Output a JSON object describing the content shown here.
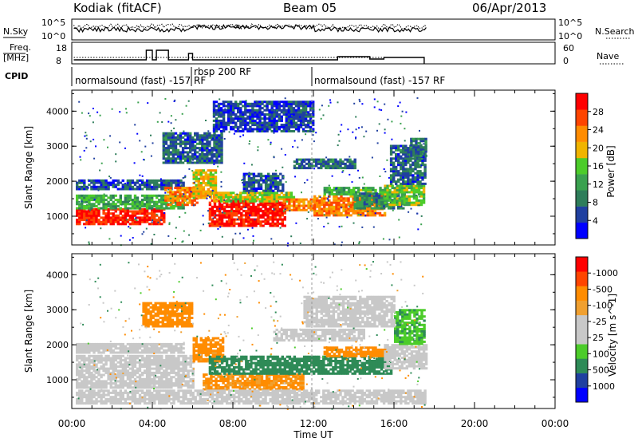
{
  "header": {
    "station": "Kodiak (fitACF)",
    "beam": "Beam 05",
    "date": "06/Apr/2013"
  },
  "noise_panel": {
    "left_label": "N.Sky",
    "right_label": "N.Search",
    "left_ticks": [
      "10^5",
      "10^0"
    ],
    "right_ticks": [
      "10^5",
      "10^0"
    ]
  },
  "freq_panel": {
    "left_label_1": "Freq.",
    "left_label_2": "[MHz]",
    "right_label": "Nave",
    "left_ticks": [
      "18",
      "8"
    ],
    "right_ticks": [
      "60",
      "0"
    ]
  },
  "cpid": {
    "label": "CPID",
    "segments": [
      {
        "text": "normalsound (fast) -157 RF",
        "start_hour": 0,
        "end_hour": 6
      },
      {
        "text": "rbsp 200 RF",
        "start_hour": 6,
        "end_hour": 12
      },
      {
        "text": "normalsound (fast) -157 RF",
        "start_hour": 12,
        "end_hour": 24
      }
    ]
  },
  "time_axis": {
    "label": "Time UT",
    "ticks": [
      "00:00",
      "04:00",
      "08:00",
      "12:00",
      "16:00",
      "20:00",
      "00:00"
    ],
    "tick_hours": [
      0,
      4,
      8,
      12,
      16,
      20,
      24
    ]
  },
  "colors": {
    "power_scale": [
      "#0000ff",
      "#2040a0",
      "#2e7d5a",
      "#3aa14f",
      "#4ccc2a",
      "#f0b400",
      "#ff8c00",
      "#ff4500",
      "#ff0000"
    ],
    "velocity_scale": [
      "#ff0000",
      "#ff4500",
      "#ff8c00",
      "#f0a030",
      "#c8c8c8",
      "#c8c8c8",
      "#4ccc2a",
      "#2e8b57",
      "#2040a0",
      "#0000ff"
    ],
    "ground_scatter": "#c8c8c8"
  },
  "chart_data": [
    {
      "type": "heatmap",
      "title": "Power",
      "ylabel": "Slant Range [km]",
      "xlabel": "Time UT",
      "xlim": [
        0,
        24
      ],
      "ylim": [
        180,
        4600
      ],
      "yticks": [
        1000,
        2000,
        3000,
        4000
      ],
      "colorbar": {
        "label": "Power [dB]",
        "ticks": [
          "4",
          "8",
          "12",
          "16",
          "20",
          "24",
          "28"
        ],
        "tick_values": [
          4,
          8,
          12,
          16,
          20,
          24,
          28
        ],
        "range": [
          0,
          32
        ]
      },
      "regions": [
        {
          "t0": 0.2,
          "t1": 4.6,
          "r0": 750,
          "r1": 1200,
          "value": 29
        },
        {
          "t0": 0.2,
          "t1": 5.6,
          "r0": 1200,
          "r1": 1600,
          "value": 13
        },
        {
          "t0": 0.2,
          "t1": 5.6,
          "r0": 1750,
          "r1": 2050,
          "value": 6
        },
        {
          "t0": 4.6,
          "t1": 6.2,
          "r0": 1300,
          "r1": 1800,
          "value": 24
        },
        {
          "t0": 6.0,
          "t1": 7.2,
          "r0": 1500,
          "r1": 2300,
          "value": 20
        },
        {
          "t0": 6.8,
          "t1": 10.6,
          "r0": 700,
          "r1": 1450,
          "value": 30
        },
        {
          "t0": 7.0,
          "t1": 11.0,
          "r0": 1400,
          "r1": 1650,
          "value": 18
        },
        {
          "t0": 10.5,
          "t1": 12.0,
          "r0": 1150,
          "r1": 1500,
          "value": 24
        },
        {
          "t0": 12.0,
          "t1": 15.5,
          "r0": 1000,
          "r1": 1600,
          "value": 24
        },
        {
          "t0": 12.5,
          "t1": 15.5,
          "r0": 1600,
          "r1": 1800,
          "value": 14
        },
        {
          "t0": 14.0,
          "t1": 16.4,
          "r0": 1200,
          "r1": 1650,
          "value": 10
        },
        {
          "t0": 15.5,
          "t1": 17.5,
          "r0": 1300,
          "r1": 1850,
          "value": 16
        },
        {
          "t0": 15.8,
          "t1": 17.6,
          "r0": 1900,
          "r1": 3000,
          "value": 7
        },
        {
          "t0": 16.8,
          "t1": 17.6,
          "r0": 2700,
          "r1": 3200,
          "value": 8
        },
        {
          "t0": 8.5,
          "t1": 10.5,
          "r0": 1700,
          "r1": 2200,
          "value": 6
        },
        {
          "t0": 11.0,
          "t1": 14.0,
          "r0": 2350,
          "r1": 2650,
          "value": 8
        },
        {
          "t0": 4.5,
          "t1": 7.5,
          "r0": 2500,
          "r1": 3400,
          "value": 7
        },
        {
          "t0": 7.0,
          "t1": 12.0,
          "r0": 3400,
          "r1": 4300,
          "value": 5
        }
      ]
    },
    {
      "type": "heatmap",
      "title": "Velocity",
      "ylabel": "Slant Range [km]",
      "xlabel": "Time UT",
      "xlim": [
        0,
        24
      ],
      "ylim": [
        180,
        4600
      ],
      "yticks": [
        1000,
        2000,
        3000,
        4000
      ],
      "colorbar": {
        "label": "Velocity [m s^-1]",
        "ticks": [
          "-1000",
          "-500",
          "-100",
          "-25",
          "25",
          "100",
          "500",
          "1000"
        ],
        "tick_values": [
          -1000,
          -500,
          -100,
          -25,
          25,
          100,
          500,
          1000
        ]
      },
      "regions": [
        {
          "t0": 0.2,
          "t1": 6.0,
          "r0": 750,
          "r1": 1700,
          "value": 0,
          "ground": true
        },
        {
          "t0": 0.2,
          "t1": 5.5,
          "r0": 1750,
          "r1": 2050,
          "value": 0,
          "ground": true
        },
        {
          "t0": 3.5,
          "t1": 6.0,
          "r0": 2500,
          "r1": 3200,
          "value": -200
        },
        {
          "t0": 6.0,
          "t1": 7.5,
          "r0": 1500,
          "r1": 2200,
          "value": -150
        },
        {
          "t0": 6.5,
          "t1": 11.5,
          "r0": 700,
          "r1": 1150,
          "value": -120
        },
        {
          "t0": 6.8,
          "t1": 15.8,
          "r0": 1150,
          "r1": 1650,
          "value": 160
        },
        {
          "t0": 12.5,
          "t1": 15.8,
          "r0": 1650,
          "r1": 1900,
          "value": -180
        },
        {
          "t0": 15.5,
          "t1": 17.6,
          "r0": 1300,
          "r1": 2000,
          "value": 0,
          "ground": true
        },
        {
          "t0": 16.0,
          "t1": 17.5,
          "r0": 2000,
          "r1": 3000,
          "value": 80
        },
        {
          "t0": 10.0,
          "t1": 14.5,
          "r0": 2100,
          "r1": 2450,
          "value": 0,
          "ground": true
        },
        {
          "t0": 11.5,
          "t1": 16.0,
          "r0": 2500,
          "r1": 3400,
          "value": 0,
          "ground": true
        },
        {
          "t0": 0.2,
          "t1": 17.5,
          "r0": 300,
          "r1": 700,
          "value": 0,
          "ground": true
        }
      ]
    }
  ]
}
